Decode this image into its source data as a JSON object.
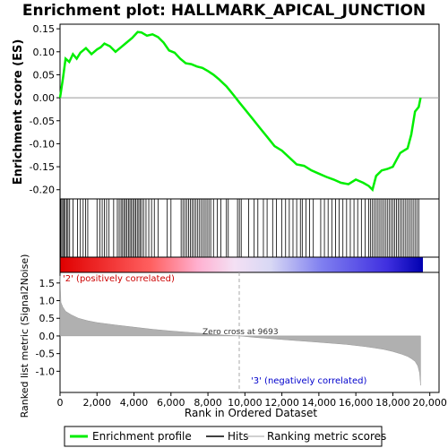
{
  "title": "Enrichment plot: HALLMARK_APICAL_JUNCTION",
  "chart_data": [
    {
      "panel": "enrichment-profile",
      "type": "line",
      "ylabel": "Enrichment score (ES)",
      "ylim": [
        -0.22,
        0.16
      ],
      "yticks": [
        0.15,
        0.1,
        0.05,
        0.0,
        -0.05,
        -0.1,
        -0.15,
        -0.2
      ],
      "ytick_labels": [
        "0.15",
        "0.10",
        "0.05",
        "0.00",
        "-0.05",
        "-0.10",
        "-0.15",
        "-0.20"
      ],
      "xlim": [
        0,
        19500
      ],
      "color": "#00ee00",
      "series": [
        {
          "name": "Enrichment profile",
          "x": [
            0,
            150,
            300,
            500,
            700,
            900,
            1100,
            1400,
            1700,
            2000,
            2200,
            2400,
            2700,
            3000,
            3300,
            3600,
            3900,
            4200,
            4400,
            4700,
            5000,
            5300,
            5600,
            5900,
            6200,
            6500,
            6800,
            7100,
            7400,
            7700,
            8000,
            8300,
            8600,
            9000,
            9400,
            9693,
            10000,
            10400,
            10800,
            11200,
            11600,
            12000,
            12400,
            12800,
            13200,
            13600,
            14000,
            14400,
            14800,
            15200,
            15600,
            16000,
            16400,
            16700,
            16900,
            17100,
            17400,
            17700,
            18000,
            18200,
            18400,
            18600,
            18800,
            19000,
            19200,
            19400,
            19500
          ],
          "y": [
            0.0,
            0.04,
            0.085,
            0.078,
            0.095,
            0.085,
            0.098,
            0.108,
            0.095,
            0.105,
            0.11,
            0.118,
            0.112,
            0.1,
            0.11,
            0.12,
            0.13,
            0.143,
            0.142,
            0.135,
            0.138,
            0.132,
            0.12,
            0.103,
            0.098,
            0.085,
            0.075,
            0.073,
            0.068,
            0.065,
            0.058,
            0.05,
            0.04,
            0.025,
            0.005,
            -0.01,
            -0.025,
            -0.045,
            -0.065,
            -0.085,
            -0.105,
            -0.115,
            -0.13,
            -0.145,
            -0.148,
            -0.158,
            -0.165,
            -0.172,
            -0.178,
            -0.185,
            -0.188,
            -0.178,
            -0.185,
            -0.192,
            -0.2,
            -0.17,
            -0.158,
            -0.155,
            -0.15,
            -0.135,
            -0.12,
            -0.115,
            -0.11,
            -0.08,
            -0.03,
            -0.02,
            0.0
          ]
        }
      ]
    },
    {
      "panel": "hits",
      "type": "scatter",
      "series": [
        {
          "name": "Hits",
          "x": [
            30,
            90,
            150,
            210,
            280,
            360,
            430,
            520,
            700,
            950,
            1100,
            1250,
            1380,
            1500,
            2000,
            2150,
            2280,
            2400,
            2520,
            2650,
            2900,
            3100,
            3200,
            3300,
            3380,
            3460,
            3540,
            3620,
            3700,
            3780,
            3860,
            3940,
            4020,
            4100,
            4180,
            4260,
            4340,
            4420,
            4520,
            4650,
            4800,
            4950,
            5100,
            5300,
            5800,
            6000,
            6550,
            6650,
            6750,
            6850,
            6950,
            7050,
            7150,
            7250,
            7350,
            7450,
            7550,
            7650,
            7750,
            7850,
            7950,
            8050,
            8150,
            8300,
            8500,
            8700,
            9000,
            9100,
            9600,
            9700,
            9800,
            10200,
            10500,
            10700,
            11000,
            11200,
            11500,
            11700,
            12000,
            12200,
            12400,
            12600,
            12800,
            13000,
            13100,
            13300,
            13500,
            13700,
            14100,
            14300,
            14500,
            14700,
            14900,
            15100,
            15300,
            15500,
            15700,
            15900,
            16100,
            16300,
            16500,
            16700,
            16800,
            16900,
            17000,
            17100,
            17200,
            17300,
            17400,
            17500,
            17600,
            17700,
            17800,
            17900,
            18000,
            18100,
            18200,
            18300,
            18400,
            18500,
            18600,
            18700,
            18800,
            18900,
            19000,
            19100,
            19200,
            19300,
            19400
          ]
        }
      ]
    },
    {
      "panel": "ranked-metric",
      "type": "area",
      "ylabel": "Ranked list metric (Signal2Noise)",
      "xlabel": "Rank in Ordered Dataset",
      "ylim": [
        -1.6,
        1.8
      ],
      "yticks": [
        1.5,
        1.0,
        0.5,
        0.0,
        -0.5,
        -1.0
      ],
      "ytick_labels": [
        "1.5",
        "1.0",
        "0.5",
        "0.0",
        "-0.5",
        "-1.0"
      ],
      "xlim": [
        0,
        20500
      ],
      "xticks": [
        0,
        2000,
        4000,
        6000,
        8000,
        10000,
        12000,
        14000,
        16000,
        18000,
        20000
      ],
      "xtick_labels": [
        "0",
        "2,000",
        "4,000",
        "6,000",
        "8,000",
        "10,000",
        "12,000",
        "14,000",
        "16,000",
        "18,000",
        "20,000"
      ],
      "color": "#b0b0b0",
      "series": [
        {
          "name": "Ranking metric scores",
          "x": [
            0,
            50,
            150,
            300,
            600,
            1000,
            1500,
            2000,
            3000,
            4000,
            5000,
            6000,
            7000,
            8000,
            9000,
            9693,
            10500,
            11500,
            12500,
            13500,
            14500,
            15500,
            16500,
            17000,
            17500,
            18000,
            18500,
            18800,
            19000,
            19200,
            19350,
            19450,
            19500
          ],
          "y": [
            1.7,
            0.95,
            0.82,
            0.7,
            0.6,
            0.5,
            0.43,
            0.38,
            0.31,
            0.25,
            0.19,
            0.14,
            0.1,
            0.06,
            0.02,
            0.0,
            -0.04,
            -0.08,
            -0.12,
            -0.16,
            -0.2,
            -0.24,
            -0.3,
            -0.34,
            -0.38,
            -0.44,
            -0.52,
            -0.58,
            -0.64,
            -0.72,
            -0.85,
            -1.05,
            -1.4
          ]
        }
      ],
      "annotations": {
        "positive": "'2' (positively correlated)",
        "negative": "'3' (negatively correlated)",
        "zero_cross": "Zero cross at 9693",
        "zero_cross_x": 9693
      }
    }
  ],
  "legend": {
    "items": [
      {
        "label": "Enrichment profile",
        "color": "#00ee00"
      },
      {
        "label": "Hits",
        "color": "#000000"
      },
      {
        "label": "Ranking metric scores",
        "color": "#c0c0c0"
      }
    ]
  }
}
